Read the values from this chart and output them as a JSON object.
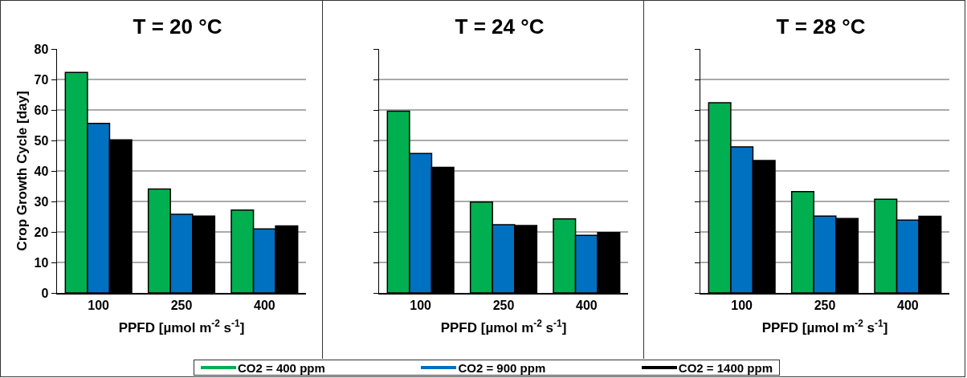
{
  "chart_data": [
    {
      "type": "bar",
      "title": "T = 20 °C",
      "xlabel": "PPFD [µmol m$^{-2}$ s$^{-1}$]",
      "ylabel": "Crop Growth Cycle [day]",
      "categories": [
        "100",
        "250",
        "400"
      ],
      "series": [
        {
          "name": "CO2 = 400 ppm",
          "color": "#00b050",
          "values": [
            72.3,
            34.1,
            27.2
          ]
        },
        {
          "name": "CO2 = 900 ppm",
          "color": "#0070c0",
          "values": [
            55.6,
            25.8,
            21.0
          ]
        },
        {
          "name": "CO2 = 1400 ppm",
          "color": "#000000",
          "values": [
            50.2,
            25.2,
            22.0
          ]
        }
      ],
      "ylim": [
        0,
        80
      ],
      "yticks": [
        0,
        10,
        20,
        30,
        40,
        50,
        60,
        70,
        80
      ],
      "grid": "y",
      "legend": "bottom"
    },
    {
      "type": "bar",
      "title": "T = 24 °C",
      "xlabel": "PPFD [µmol m$^{-2}$ s$^{-1}$]",
      "categories": [
        "100",
        "250",
        "400"
      ],
      "series": [
        {
          "color": "#00b050",
          "values": [
            59.6,
            29.8,
            24.3
          ]
        },
        {
          "color": "#0070c0",
          "values": [
            45.7,
            22.4,
            18.9
          ]
        },
        {
          "color": "#000000",
          "values": [
            41.2,
            22.1,
            19.8
          ]
        }
      ],
      "ylim": [
        0,
        80
      ],
      "yticks": [
        0,
        10,
        20,
        30,
        40,
        50,
        60,
        70,
        80
      ],
      "grid": "y",
      "tick_labels": "x"
    },
    {
      "type": "bar",
      "title": "T = 28 °C",
      "xlabel": "PPFD [µmol m$^{-2}$ s$^{-1}$]",
      "categories": [
        "100",
        "250",
        "400"
      ],
      "series": [
        {
          "color": "#00b050",
          "values": [
            62.4,
            33.2,
            30.7
          ]
        },
        {
          "color": "#0070c0",
          "values": [
            47.9,
            25.2,
            23.9
          ]
        },
        {
          "color": "#000000",
          "values": [
            43.4,
            24.4,
            25.1
          ]
        }
      ],
      "ylim": [
        0,
        80
      ],
      "yticks": [
        0,
        10,
        20,
        30,
        40,
        50,
        60,
        70,
        80
      ],
      "grid": "y",
      "tick_labels": "x"
    }
  ]
}
